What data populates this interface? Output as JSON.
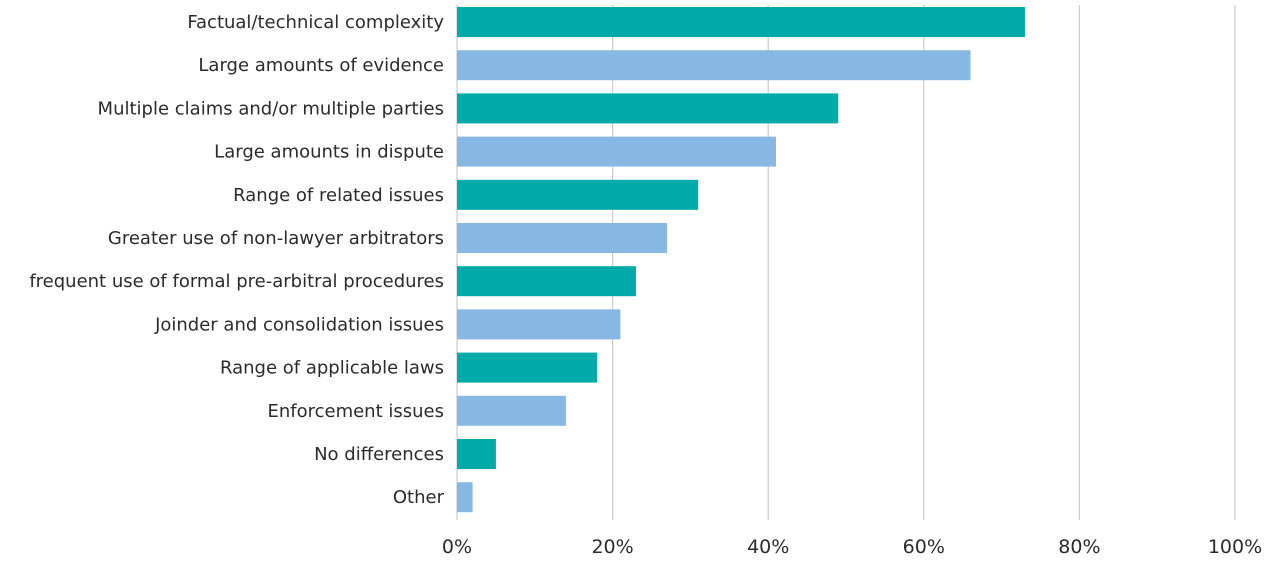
{
  "chart_data": {
    "type": "bar",
    "orientation": "horizontal",
    "categories": [
      "Factual/technical complexity",
      "Large amounts of evidence",
      "Multiple claims and/or multiple parties",
      "Large amounts in dispute",
      "Range of related issues",
      "Greater use of non-lawyer arbitrators",
      "frequent use of formal pre-arbitral procedures",
      "Joinder and consolidation issues",
      "Range of applicable laws",
      "Enforcement issues",
      "No differences",
      "Other"
    ],
    "values": [
      73,
      66,
      49,
      41,
      31,
      27,
      23,
      21,
      18,
      14,
      5,
      2
    ],
    "xlim": [
      0,
      100
    ],
    "xticks": [
      0,
      20,
      40,
      60,
      80,
      100
    ],
    "xtick_labels": [
      "0%",
      "20%",
      "40%",
      "60%",
      "80%",
      "100%"
    ],
    "grid": true,
    "bar_colors": [
      "#00aaa8",
      "#86b8e3"
    ],
    "color_pattern": "alternating",
    "title": "",
    "xlabel": "",
    "ylabel": ""
  }
}
